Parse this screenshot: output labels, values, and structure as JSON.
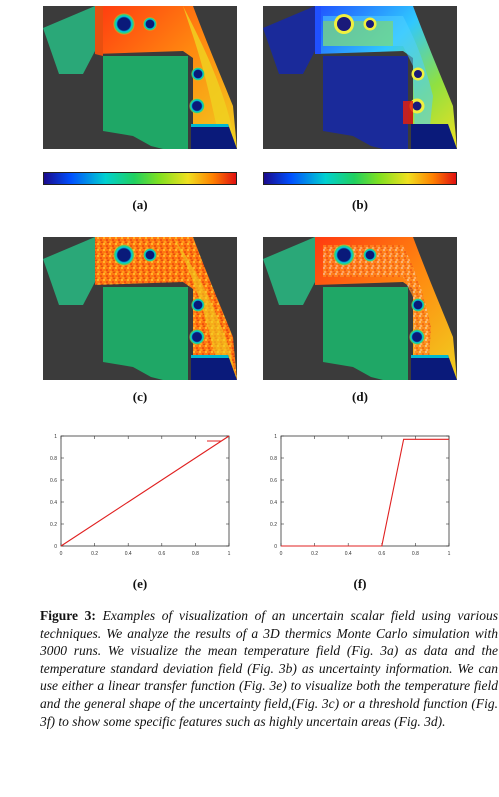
{
  "colors": {
    "background_dark": "#3b3b3b",
    "colormap_stops": [
      "#1a0a8c",
      "#0050ff",
      "#00d0d0",
      "#20d060",
      "#80e020",
      "#f0e020",
      "#ff8000",
      "#e01010"
    ],
    "curve_color": "#e02020"
  },
  "panels": [
    {
      "id": "a",
      "label": "(a)",
      "description": "mean temperature field",
      "has_colorbar": true
    },
    {
      "id": "b",
      "label": "(b)",
      "description": "temperature standard deviation field",
      "has_colorbar": true
    },
    {
      "id": "c",
      "label": "(c)",
      "description": "linear transfer function rendering",
      "has_colorbar": false
    },
    {
      "id": "d",
      "label": "(d)",
      "description": "threshold transfer function rendering",
      "has_colorbar": false
    }
  ],
  "chart_data": [
    {
      "id": "e",
      "label": "(e)",
      "type": "line",
      "title": "",
      "xlabel": "",
      "ylabel": "",
      "xlim": [
        0,
        1
      ],
      "ylim": [
        0,
        1
      ],
      "x_ticks": [
        "0",
        "0.2",
        "0.4",
        "0.6",
        "0.8",
        "1"
      ],
      "y_ticks": [
        "0",
        "0.2",
        "0.4",
        "0.6",
        "0.8",
        "1"
      ],
      "legend_position": "top-right",
      "series": [
        {
          "x": [
            0,
            1
          ],
          "y": [
            0,
            1
          ]
        }
      ]
    },
    {
      "id": "f",
      "label": "(f)",
      "type": "line",
      "title": "",
      "xlabel": "",
      "ylabel": "",
      "xlim": [
        0,
        1
      ],
      "ylim": [
        0,
        1
      ],
      "x_ticks": [
        "0",
        "0.2",
        "0.4",
        "0.6",
        "0.8",
        "1"
      ],
      "y_ticks": [
        "0",
        "0.2",
        "0.4",
        "0.6",
        "0.8",
        "1"
      ],
      "series": [
        {
          "x": [
            0,
            0.6,
            0.73,
            1
          ],
          "y": [
            0,
            0,
            0.97,
            0.97
          ]
        }
      ]
    }
  ],
  "caption": {
    "label": "Figure 3:",
    "text": "Examples of visualization of an uncertain scalar field using various techniques. We analyze the results of a 3D thermics Monte Carlo simulation with 3000 runs. We visualize the mean temperature field (Fig. 3a) as data and the temperature standard deviation field (Fig. 3b) as uncertainty information. We can use either a linear transfer function (Fig. 3e) to visualize both the temperature field and the general shape of the uncertainty field,(Fig. 3c) or a threshold function (Fig. 3f) to show some specific features such as highly uncertain areas (Fig. 3d)."
  }
}
